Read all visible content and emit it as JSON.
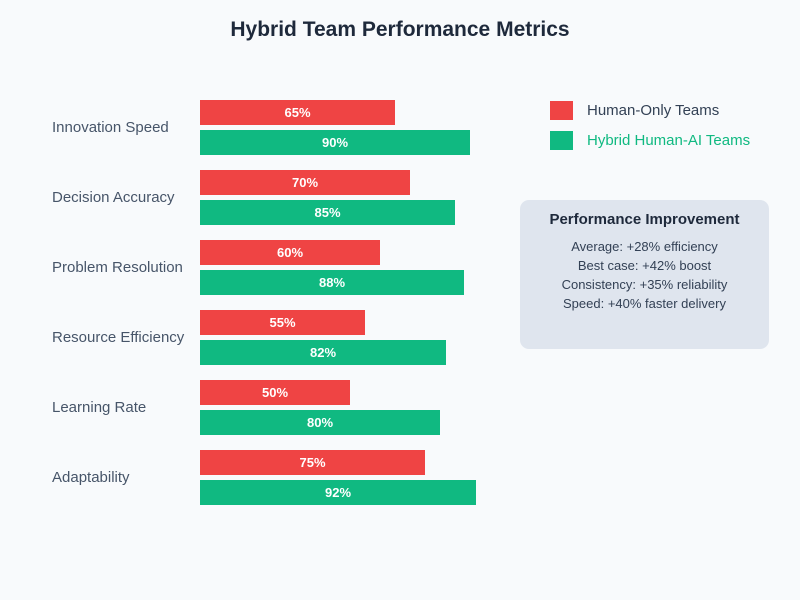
{
  "title": "Hybrid Team Performance Metrics",
  "legend": {
    "items": [
      {
        "label": "Human-Only Teams",
        "swatch_color": "#ef4444",
        "text_color": "#334155"
      },
      {
        "label": "Hybrid Human-AI Teams",
        "swatch_color": "#10b981",
        "text_color": "#10b981"
      }
    ]
  },
  "stats_panel": {
    "title": "Performance Improvement",
    "lines": [
      "Average: +28% efficiency",
      "Best case: +42% boost",
      "Consistency: +35% reliability",
      "Speed: +40% faster delivery"
    ]
  },
  "chart_data": {
    "type": "bar",
    "orientation": "horizontal",
    "title": "Hybrid Team Performance Metrics",
    "categories": [
      "Innovation Speed",
      "Decision Accuracy",
      "Problem Resolution",
      "Resource Efficiency",
      "Learning Rate",
      "Adaptability"
    ],
    "series": [
      {
        "name": "Human-Only Teams",
        "color": "#ef4444",
        "values": [
          65,
          70,
          60,
          55,
          50,
          75
        ]
      },
      {
        "name": "Hybrid Human-AI Teams",
        "color": "#10b981",
        "values": [
          90,
          85,
          88,
          82,
          80,
          92
        ]
      }
    ],
    "value_labels": [
      [
        "65%",
        "70%",
        "60%",
        "55%",
        "50%",
        "75%"
      ],
      [
        "90%",
        "85%",
        "88%",
        "82%",
        "80%",
        "92%"
      ]
    ],
    "value_suffix": "%",
    "xlim": [
      0,
      100
    ],
    "grid": false,
    "legend_position": "top-right"
  },
  "colors": {
    "background": "#f8fafc",
    "title_text": "#1e293b",
    "category_label": "#475569",
    "bar_value_text": "#ffffff",
    "panel_bg": "#dfe5ee",
    "panel_text": "#334155"
  }
}
